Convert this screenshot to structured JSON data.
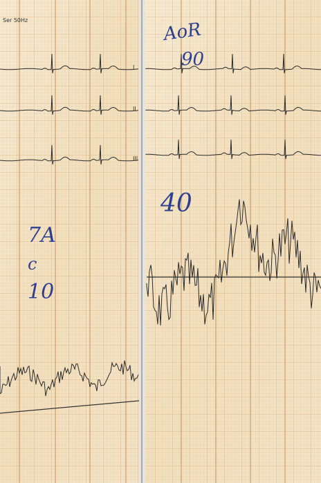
{
  "left_panel": {
    "header": "Ser 50Hz",
    "leads": [
      "I",
      "II",
      "III"
    ],
    "notes": [
      "7A",
      "c",
      "10"
    ]
  },
  "right_panel": {
    "notes": [
      "AoR",
      "90",
      "40"
    ]
  }
}
